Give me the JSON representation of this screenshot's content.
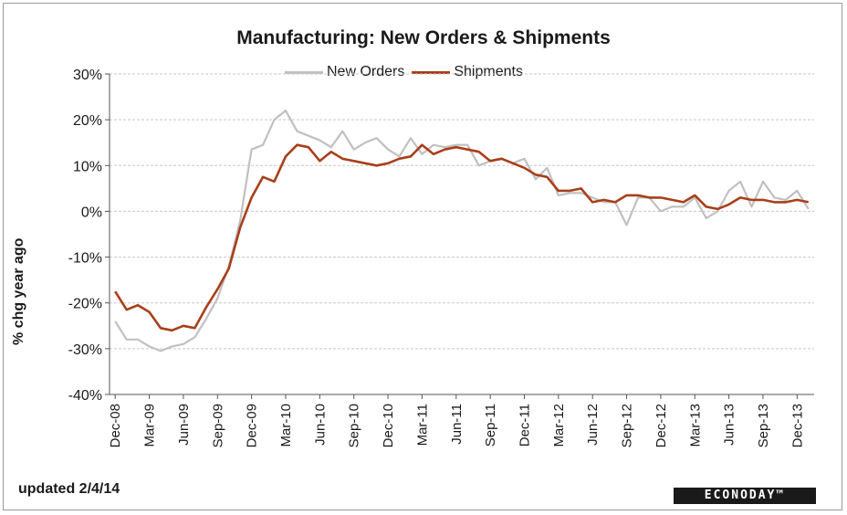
{
  "chart_data": {
    "type": "line",
    "title": "Manufacturing: New Orders & Shipments",
    "ylabel": "% chg year ago",
    "xlabel": "",
    "ylim": [
      -40,
      30
    ],
    "yticks": [
      -40,
      -30,
      -20,
      -10,
      0,
      10,
      20,
      30
    ],
    "ytick_labels": [
      "-40%",
      "-30%",
      "-20%",
      "-10%",
      "0%",
      "10%",
      "20%",
      "30%"
    ],
    "xtick_labels": [
      "Dec-08",
      "Mar-09",
      "Jun-09",
      "Sep-09",
      "Dec-09",
      "Mar-10",
      "Jun-10",
      "Sep-10",
      "Dec-10",
      "Mar-11",
      "Jun-11",
      "Sep-11",
      "Dec-11",
      "Mar-12",
      "Jun-12",
      "Sep-12",
      "Dec-12",
      "Mar-13",
      "Jun-13",
      "Sep-13",
      "Dec-13"
    ],
    "grid": true,
    "legend": "top",
    "series": [
      {
        "name": "New Orders",
        "color": "#c0c0c0",
        "values": [
          -24,
          -28,
          -28,
          -29.5,
          -30.5,
          -29.5,
          -29,
          -27.5,
          -23.5,
          -19,
          -12,
          -2,
          13.5,
          14.5,
          20,
          22,
          17.5,
          16.5,
          15.5,
          14,
          17.5,
          13.5,
          15,
          16,
          13.5,
          12,
          16,
          12.5,
          14.5,
          14,
          14.5,
          14.5,
          10,
          11,
          11.5,
          10.5,
          11.5,
          7,
          9.5,
          3.5,
          4,
          4,
          3,
          2,
          2,
          -3,
          3,
          3,
          0,
          1,
          1,
          3,
          -1.5,
          0,
          4.5,
          6.5,
          1,
          6.5,
          3,
          2.5,
          4.5,
          0.5
        ]
      },
      {
        "name": "Shipments",
        "color": "#a83f1a",
        "values": [
          -17.5,
          -21.5,
          -20.5,
          -22,
          -25.5,
          -26,
          -25,
          -25.5,
          -21,
          -17,
          -12.5,
          -3.5,
          3,
          7.5,
          6.5,
          12,
          14.5,
          14,
          11,
          13,
          11.5,
          11,
          10.5,
          10,
          10.5,
          11.5,
          12,
          14.5,
          12.5,
          13.5,
          14,
          13.5,
          13,
          11,
          11.5,
          10.5,
          9.5,
          8,
          7.5,
          4.5,
          4.5,
          5,
          2,
          2.5,
          2,
          3.5,
          3.5,
          3,
          3,
          2.5,
          2,
          3.5,
          1,
          0.5,
          1.5,
          3,
          2.5,
          2.5,
          2,
          2,
          2.5,
          2
        ]
      }
    ]
  },
  "footer": {
    "updated": "updated 2/4/14",
    "brand": "ECONODAY™"
  }
}
